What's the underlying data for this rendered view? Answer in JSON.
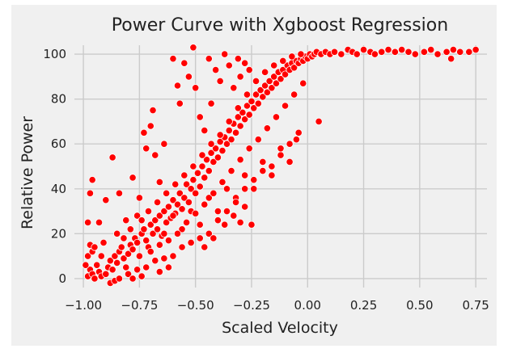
{
  "chart_data": {
    "type": "scatter",
    "title": "Power Curve with Xgboost Regression",
    "xlabel": "Scaled Velocity",
    "ylabel": "Relative Power",
    "xlim": [
      -1.04,
      0.8
    ],
    "ylim": [
      -4,
      104
    ],
    "x_ticks": [
      -1.0,
      -0.75,
      -0.5,
      -0.25,
      0.0,
      0.25,
      0.5,
      0.75
    ],
    "x_tick_labels": [
      "−1.00",
      "−0.75",
      "−0.50",
      "−0.25",
      "0.00",
      "0.25",
      "0.50",
      "0.75"
    ],
    "y_ticks": [
      0,
      20,
      40,
      60,
      80,
      100
    ],
    "y_tick_labels": [
      "0",
      "20",
      "40",
      "60",
      "80",
      "100"
    ],
    "grid": true,
    "colors": {
      "marker": "#ff0000",
      "marker_edge": "#ffffff",
      "background": "#f0f0f0",
      "grid": "#cbcbcb"
    },
    "series": [
      {
        "points": [
          [
            -0.98,
            1
          ],
          [
            -0.97,
            4
          ],
          [
            -0.96,
            2
          ],
          [
            -0.95,
            0
          ],
          [
            -0.99,
            6
          ],
          [
            -0.98,
            10
          ],
          [
            -0.97,
            15
          ],
          [
            -0.96,
            12
          ],
          [
            -0.94,
            6
          ],
          [
            -0.93,
            3
          ],
          [
            -0.92,
            1
          ],
          [
            -0.9,
            2
          ],
          [
            -0.89,
            5
          ],
          [
            -0.88,
            8
          ],
          [
            -0.87,
            4
          ],
          [
            -0.86,
            10
          ],
          [
            -0.85,
            7
          ],
          [
            -0.84,
            12
          ],
          [
            -0.83,
            14
          ],
          [
            -0.82,
            9
          ],
          [
            -0.81,
            5
          ],
          [
            -0.8,
            11
          ],
          [
            -0.79,
            15
          ],
          [
            -0.78,
            13
          ],
          [
            -0.77,
            18
          ],
          [
            -0.76,
            16
          ],
          [
            -0.75,
            10
          ],
          [
            -0.74,
            20
          ],
          [
            -0.73,
            22
          ],
          [
            -0.72,
            17
          ],
          [
            -0.71,
            14
          ],
          [
            -0.7,
            24
          ],
          [
            -0.69,
            20
          ],
          [
            -0.68,
            26
          ],
          [
            -0.67,
            22
          ],
          [
            -0.66,
            28
          ],
          [
            -0.65,
            19
          ],
          [
            -0.64,
            30
          ],
          [
            -0.63,
            25
          ],
          [
            -0.62,
            32
          ],
          [
            -0.61,
            27
          ],
          [
            -0.6,
            35
          ],
          [
            -0.59,
            29
          ],
          [
            -0.58,
            33
          ],
          [
            -0.57,
            38
          ],
          [
            -0.56,
            31
          ],
          [
            -0.55,
            36
          ],
          [
            -0.54,
            42
          ],
          [
            -0.53,
            34
          ],
          [
            -0.52,
            40
          ],
          [
            -0.51,
            44
          ],
          [
            -0.5,
            38
          ],
          [
            -0.49,
            47
          ],
          [
            -0.48,
            41
          ],
          [
            -0.47,
            50
          ],
          [
            -0.46,
            45
          ],
          [
            -0.45,
            53
          ],
          [
            -0.44,
            48
          ],
          [
            -0.43,
            56
          ],
          [
            -0.42,
            52
          ],
          [
            -0.41,
            58
          ],
          [
            -0.4,
            54
          ],
          [
            -0.39,
            61
          ],
          [
            -0.38,
            57
          ],
          [
            -0.37,
            63
          ],
          [
            -0.36,
            60
          ],
          [
            -0.35,
            66
          ],
          [
            -0.34,
            62
          ],
          [
            -0.33,
            69
          ],
          [
            -0.32,
            65
          ],
          [
            -0.31,
            72
          ],
          [
            -0.3,
            68
          ],
          [
            -0.29,
            74
          ],
          [
            -0.28,
            71
          ],
          [
            -0.27,
            77
          ],
          [
            -0.26,
            73
          ],
          [
            -0.25,
            79
          ],
          [
            -0.24,
            76
          ],
          [
            -0.23,
            82
          ],
          [
            -0.22,
            78
          ],
          [
            -0.21,
            84
          ],
          [
            -0.2,
            81
          ],
          [
            -0.19,
            86
          ],
          [
            -0.18,
            83
          ],
          [
            -0.17,
            88
          ],
          [
            -0.16,
            85
          ],
          [
            -0.15,
            90
          ],
          [
            -0.14,
            87
          ],
          [
            -0.13,
            92
          ],
          [
            -0.12,
            89
          ],
          [
            -0.11,
            93
          ],
          [
            -0.1,
            91
          ],
          [
            -0.09,
            95
          ],
          [
            -0.08,
            93
          ],
          [
            -0.07,
            96
          ],
          [
            -0.06,
            94
          ],
          [
            -0.05,
            97
          ],
          [
            -0.04,
            96
          ],
          [
            -0.03,
            98
          ],
          [
            -0.02,
            97
          ],
          [
            -0.01,
            99
          ],
          [
            0.0,
            98
          ],
          [
            0.01,
            100
          ],
          [
            0.02,
            99
          ],
          [
            0.03,
            100
          ],
          [
            0.04,
            101
          ],
          [
            0.06,
            100
          ],
          [
            0.08,
            101
          ],
          [
            0.1,
            100
          ],
          [
            0.12,
            101
          ],
          [
            0.15,
            100
          ],
          [
            0.18,
            102
          ],
          [
            0.2,
            101
          ],
          [
            0.22,
            100
          ],
          [
            0.25,
            102
          ],
          [
            0.28,
            101
          ],
          [
            0.3,
            100
          ],
          [
            0.33,
            101
          ],
          [
            0.36,
            102
          ],
          [
            0.39,
            101
          ],
          [
            0.42,
            102
          ],
          [
            0.45,
            101
          ],
          [
            0.48,
            100
          ],
          [
            0.52,
            101
          ],
          [
            0.55,
            102
          ],
          [
            0.58,
            100
          ],
          [
            0.62,
            101
          ],
          [
            0.65,
            102
          ],
          [
            0.68,
            101
          ],
          [
            0.72,
            101
          ],
          [
            0.75,
            102
          ],
          [
            0.64,
            98
          ],
          [
            -0.98,
            25
          ],
          [
            -0.97,
            38
          ],
          [
            -0.96,
            44
          ],
          [
            -0.93,
            25
          ],
          [
            -0.9,
            35
          ],
          [
            -0.87,
            54
          ],
          [
            -0.84,
            38
          ],
          [
            -0.81,
            26
          ],
          [
            -0.78,
            45
          ],
          [
            -0.75,
            36
          ],
          [
            -0.73,
            65
          ],
          [
            -0.72,
            58
          ],
          [
            -0.7,
            68
          ],
          [
            -0.69,
            75
          ],
          [
            -0.68,
            55
          ],
          [
            -0.66,
            43
          ],
          [
            -0.64,
            60
          ],
          [
            -0.6,
            98
          ],
          [
            -0.58,
            86
          ],
          [
            -0.57,
            78
          ],
          [
            -0.55,
            96
          ],
          [
            -0.53,
            90
          ],
          [
            -0.51,
            103
          ],
          [
            -0.5,
            85
          ],
          [
            -0.48,
            72
          ],
          [
            -0.46,
            66
          ],
          [
            -0.44,
            98
          ],
          [
            -0.43,
            78
          ],
          [
            -0.41,
            93
          ],
          [
            -0.39,
            88
          ],
          [
            -0.37,
            100
          ],
          [
            -0.35,
            95
          ],
          [
            -0.33,
            85
          ],
          [
            -0.31,
            98
          ],
          [
            -0.3,
            90
          ],
          [
            -0.28,
            96
          ],
          [
            -0.26,
            93
          ],
          [
            -0.88,
            -2
          ],
          [
            -0.86,
            -1
          ],
          [
            -0.84,
            0
          ],
          [
            -0.8,
            2
          ],
          [
            -0.76,
            4
          ],
          [
            -0.72,
            5
          ],
          [
            -0.68,
            8
          ],
          [
            -0.64,
            9
          ],
          [
            -0.6,
            10
          ],
          [
            -0.56,
            14
          ],
          [
            -0.52,
            16
          ],
          [
            -0.48,
            18
          ],
          [
            -0.44,
            20
          ],
          [
            -0.4,
            26
          ],
          [
            -0.36,
            30
          ],
          [
            -0.32,
            36
          ],
          [
            -0.28,
            40
          ],
          [
            -0.24,
            44
          ],
          [
            -0.2,
            48
          ],
          [
            -0.16,
            50
          ],
          [
            -0.12,
            55
          ],
          [
            -0.08,
            60
          ],
          [
            -0.04,
            65
          ],
          [
            0.05,
            70
          ],
          [
            -0.64,
            20
          ],
          [
            -0.6,
            28
          ],
          [
            -0.56,
            22
          ],
          [
            -0.52,
            30
          ],
          [
            -0.48,
            24
          ],
          [
            -0.44,
            36
          ],
          [
            -0.4,
            30
          ],
          [
            -0.36,
            40
          ],
          [
            -0.32,
            34
          ],
          [
            -0.28,
            46
          ],
          [
            -0.24,
            40
          ],
          [
            -0.2,
            52
          ],
          [
            -0.16,
            46
          ],
          [
            -0.12,
            58
          ],
          [
            -0.08,
            52
          ],
          [
            -0.05,
            62
          ],
          [
            -0.7,
            12
          ],
          [
            -0.66,
            15
          ],
          [
            -0.62,
            17
          ],
          [
            -0.58,
            20
          ],
          [
            -0.54,
            25
          ],
          [
            -0.5,
            29
          ],
          [
            -0.46,
            33
          ],
          [
            -0.42,
            38
          ],
          [
            -0.38,
            43
          ],
          [
            -0.34,
            48
          ],
          [
            -0.3,
            53
          ],
          [
            -0.26,
            58
          ],
          [
            -0.22,
            62
          ],
          [
            -0.18,
            67
          ],
          [
            -0.14,
            72
          ],
          [
            -0.1,
            77
          ],
          [
            -0.06,
            82
          ],
          [
            -0.02,
            87
          ],
          [
            -0.92,
            10
          ],
          [
            -0.95,
            14
          ],
          [
            -0.91,
            16
          ],
          [
            -0.85,
            20
          ],
          [
            -0.82,
            18
          ],
          [
            -0.79,
            22
          ],
          [
            -0.76,
            28
          ],
          [
            -0.74,
            26
          ],
          [
            -0.71,
            30
          ],
          [
            -0.67,
            34
          ],
          [
            -0.63,
            38
          ],
          [
            -0.59,
            42
          ],
          [
            -0.55,
            46
          ],
          [
            -0.51,
            50
          ],
          [
            -0.47,
            55
          ],
          [
            -0.43,
            60
          ],
          [
            -0.39,
            64
          ],
          [
            -0.35,
            70
          ],
          [
            -0.31,
            76
          ],
          [
            -0.27,
            82
          ],
          [
            -0.23,
            88
          ],
          [
            -0.19,
            92
          ],
          [
            -0.15,
            95
          ],
          [
            -0.11,
            97
          ],
          [
            -0.07,
            99
          ],
          [
            -0.03,
            100
          ],
          [
            -0.3,
            25
          ],
          [
            -0.25,
            24
          ],
          [
            -0.28,
            32
          ],
          [
            -0.33,
            28
          ],
          [
            -0.37,
            24
          ],
          [
            -0.42,
            18
          ],
          [
            -0.46,
            14
          ],
          [
            -0.62,
            5
          ],
          [
            -0.66,
            3
          ],
          [
            -0.74,
            1
          ],
          [
            -0.78,
            0
          ]
        ]
      }
    ]
  }
}
